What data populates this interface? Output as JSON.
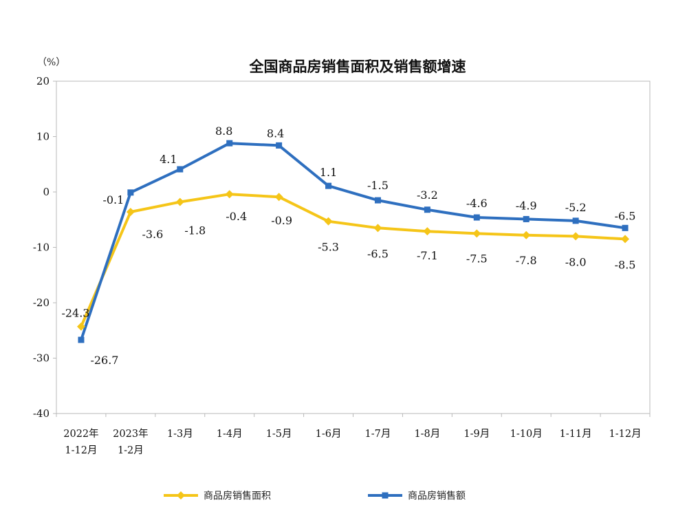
{
  "chart_data": {
    "type": "line",
    "title": "全国商品房销售面积及销售额增速",
    "unit_label": "（%）",
    "ylim": [
      -40,
      20
    ],
    "yticks": [
      20,
      10,
      0,
      -10,
      -20,
      -30,
      -40
    ],
    "categories": [
      [
        "2022年",
        "1-12月"
      ],
      [
        "2023年",
        "1-2月"
      ],
      [
        "1-3月"
      ],
      [
        "1-4月"
      ],
      [
        "1-5月"
      ],
      [
        "1-6月"
      ],
      [
        "1-7月"
      ],
      [
        "1-8月"
      ],
      [
        "1-9月"
      ],
      [
        "1-10月"
      ],
      [
        "1-11月"
      ],
      [
        "1-12月"
      ]
    ],
    "series": [
      {
        "name": "商品房销售面积",
        "color": "#F5C518",
        "marker": "diamond",
        "values": [
          -24.3,
          -3.6,
          -1.8,
          -0.4,
          -0.9,
          -5.3,
          -6.5,
          -7.1,
          -7.5,
          -7.8,
          -8.0,
          -8.5
        ],
        "labels": [
          "-24.3",
          "-3.6",
          "-1.8",
          "-0.4",
          "-0.9",
          "-5.3",
          "-6.5",
          "-7.1",
          "-7.5",
          "-7.8",
          "-8.0",
          "-8.5"
        ]
      },
      {
        "name": "商品房销售额",
        "color": "#2E6FBF",
        "marker": "square",
        "values": [
          -26.7,
          -0.1,
          4.1,
          8.8,
          8.4,
          1.1,
          -1.5,
          -3.2,
          -4.6,
          -4.9,
          -5.2,
          -6.5
        ],
        "labels": [
          "-26.7",
          "-0.1",
          "4.1",
          "8.8",
          "8.4",
          "1.1",
          "-1.5",
          "-3.2",
          "-4.6",
          "-4.9",
          "-5.2",
          "-6.5"
        ]
      }
    ],
    "grid": false,
    "legend_position": "bottom"
  }
}
